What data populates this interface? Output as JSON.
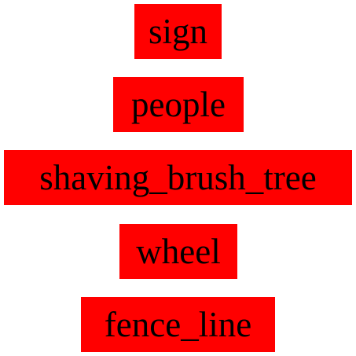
{
  "labels": [
    {
      "text": "sign"
    },
    {
      "text": "people"
    },
    {
      "text": "shaving_brush_tree"
    },
    {
      "text": "wheel"
    },
    {
      "text": "fence_line"
    }
  ],
  "colors": {
    "label_background": "#ff0000",
    "label_text": "#000000",
    "page_background": "#ffffff"
  }
}
